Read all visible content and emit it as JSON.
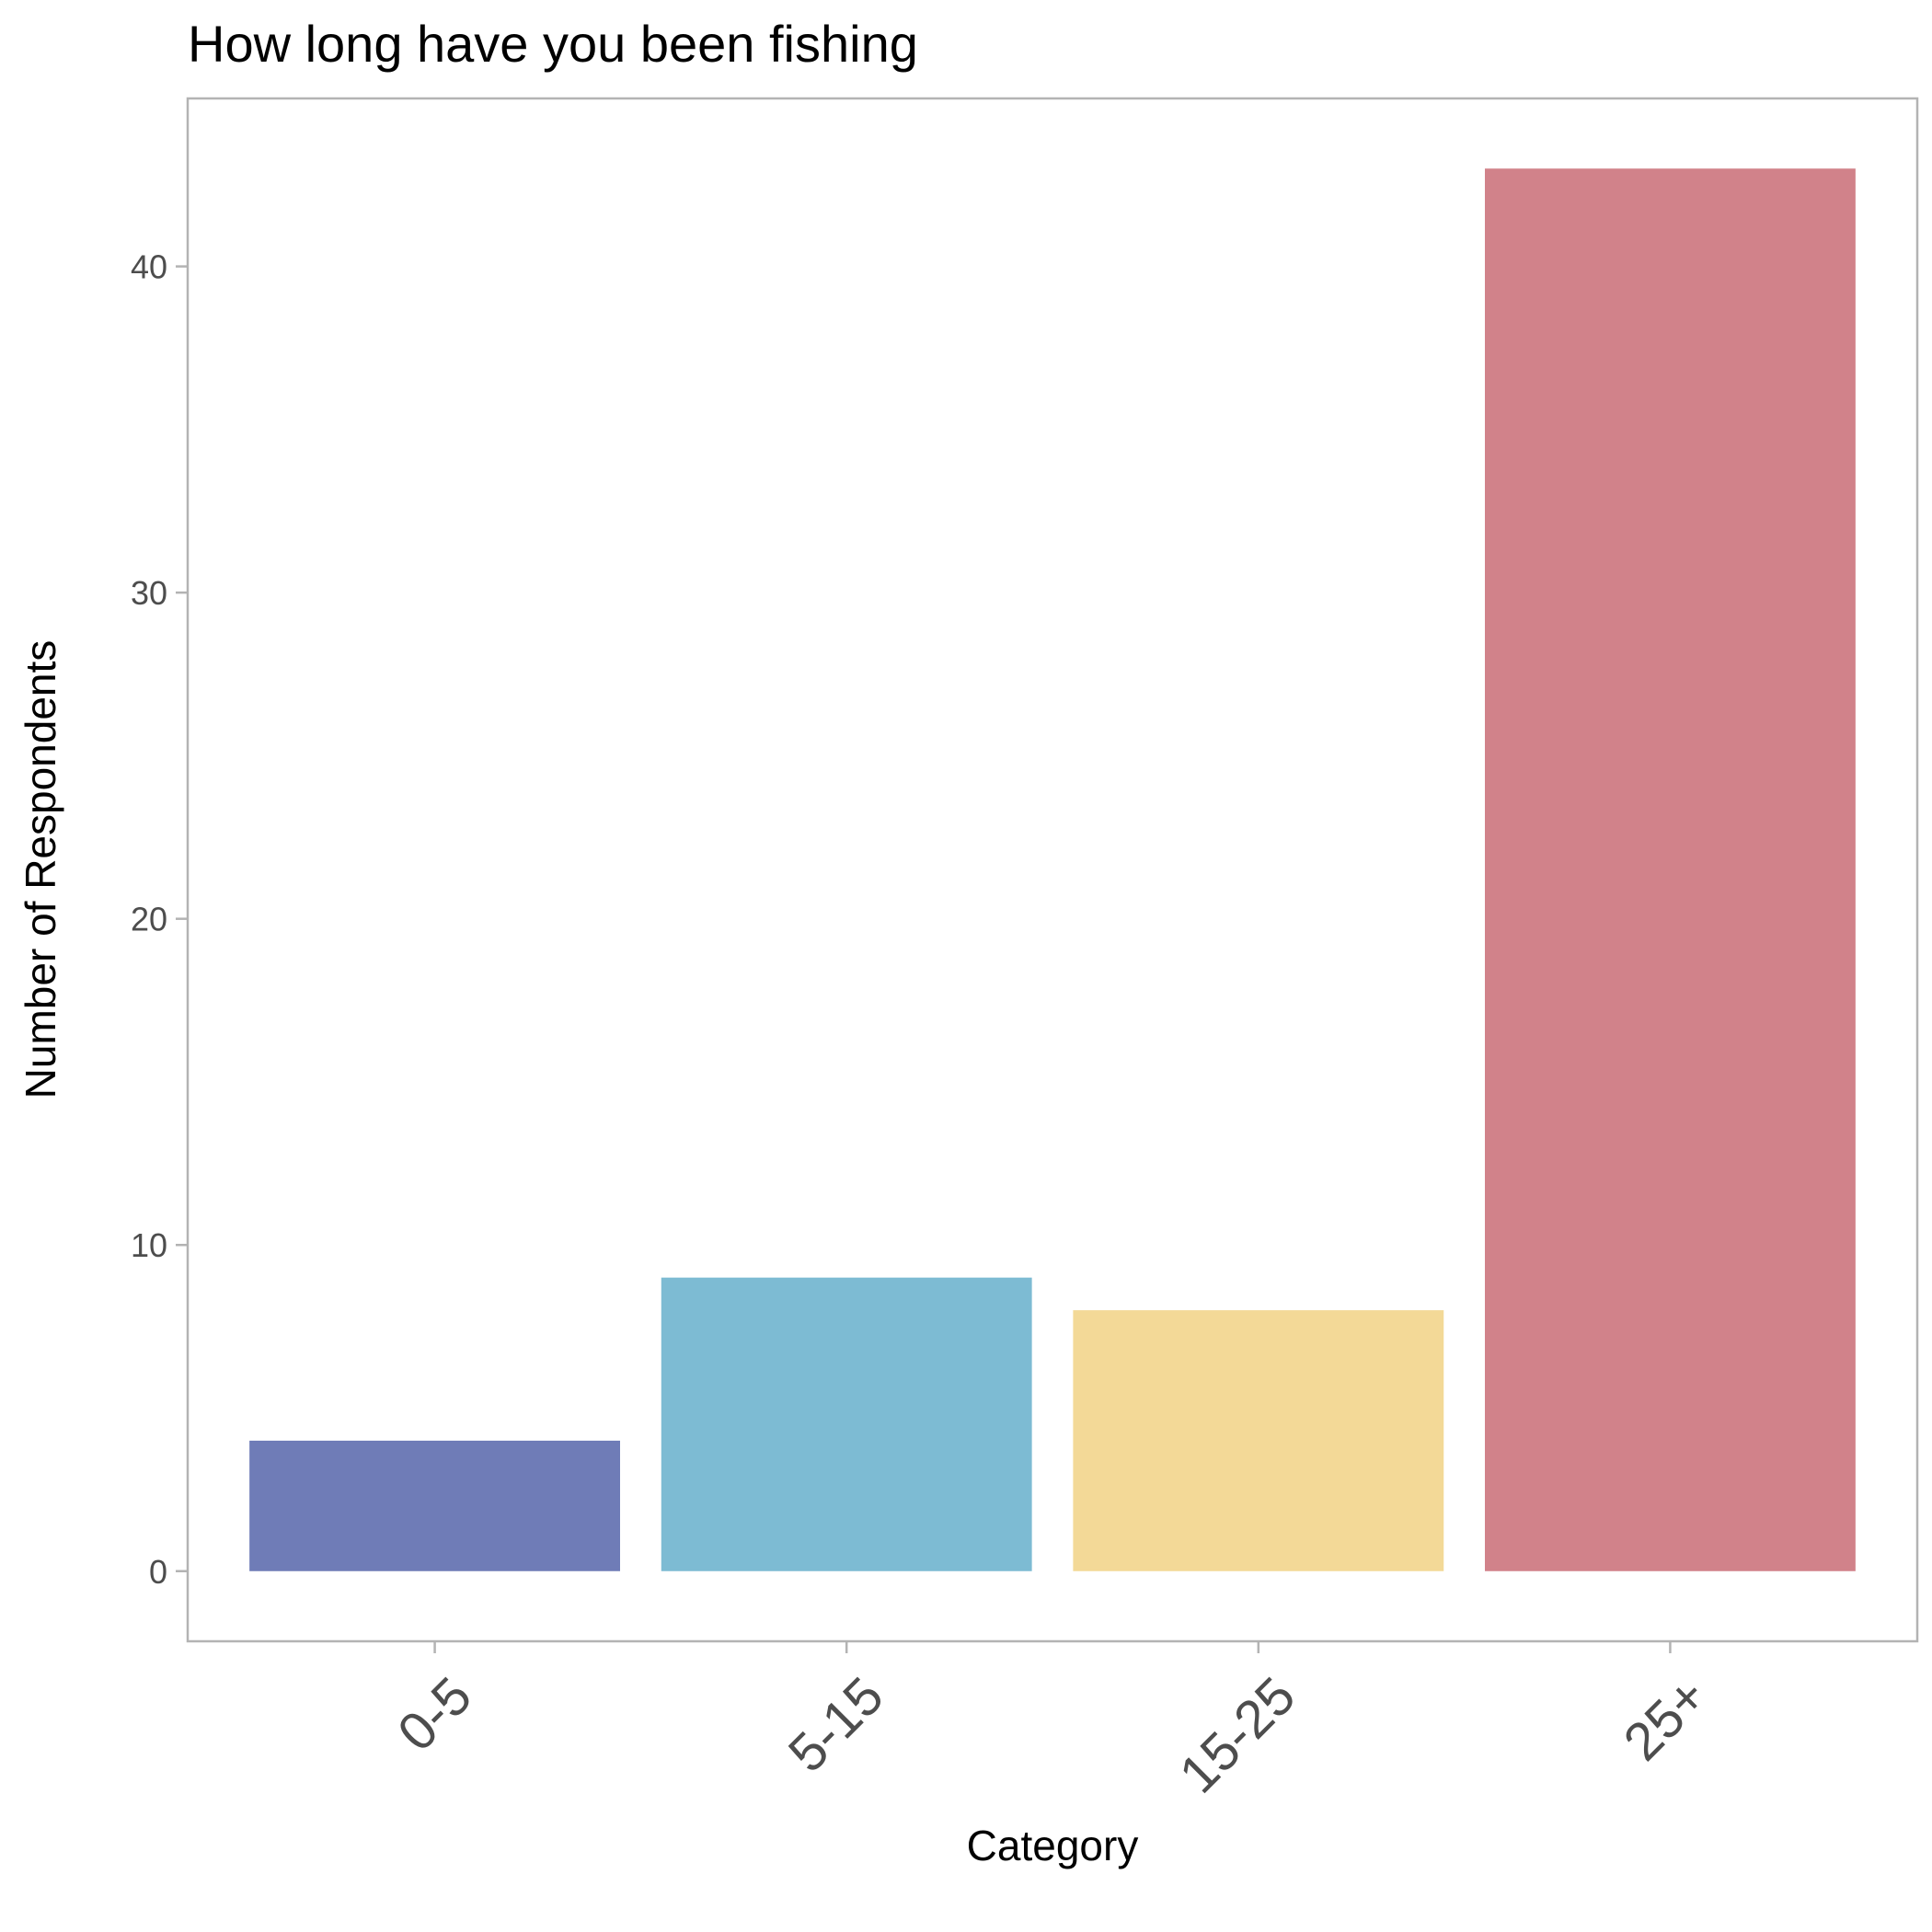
{
  "chart_data": {
    "type": "bar",
    "title": "How long have you been fishing",
    "xlabel": "Category",
    "ylabel": "Number of Respondents",
    "categories": [
      "0-5",
      "5-15",
      "15-25",
      "25+"
    ],
    "values": [
      4,
      9,
      8,
      43
    ],
    "colors": [
      "#6f7cb7",
      "#7dbbd3",
      "#f3d997",
      "#d1828a"
    ],
    "ylim": [
      -2.15,
      45.15
    ],
    "yticks": [
      0,
      10,
      20,
      30,
      40
    ],
    "ytick_labels": [
      "0",
      "10",
      "20",
      "30",
      "40"
    ],
    "grid": false,
    "legend": "none",
    "x_tick_label_rotation": "45deg"
  }
}
